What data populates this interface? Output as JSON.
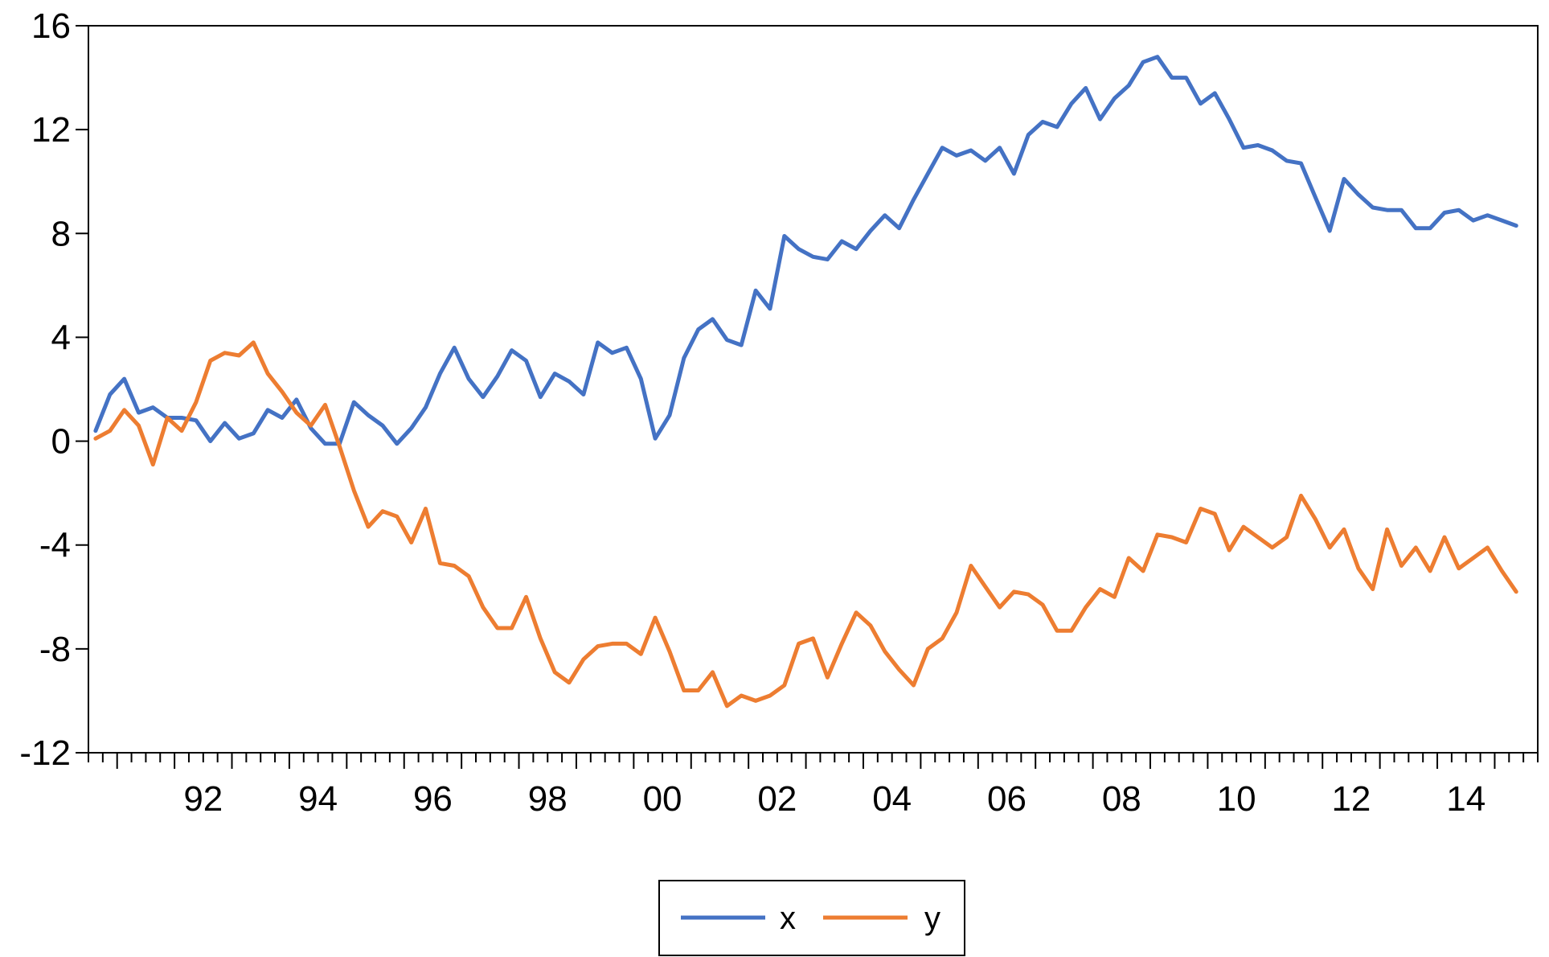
{
  "chart_data": {
    "type": "line",
    "title": "",
    "xlabel": "",
    "ylabel": "",
    "frequency": "quarterly",
    "x_start": "1990Q3",
    "x_end": "2015Q2",
    "x_tick_labels": [
      "92",
      "94",
      "96",
      "98",
      "00",
      "02",
      "04",
      "06",
      "08",
      "10",
      "12",
      "14"
    ],
    "y_ticks": [
      16,
      12,
      8,
      4,
      0,
      -4,
      -8,
      -12
    ],
    "y_tick_labels": [
      "16",
      "12",
      "8",
      "4",
      "0",
      "-4",
      "-8",
      "-12"
    ],
    "ylim": [
      -12,
      16
    ],
    "grid": false,
    "legend_position": "bottom-center",
    "series": [
      {
        "name": "x",
        "color": "#4472C4",
        "values": [
          0.4,
          1.8,
          2.4,
          1.1,
          1.3,
          0.9,
          0.9,
          0.8,
          0.0,
          0.7,
          0.1,
          0.3,
          1.2,
          0.9,
          1.6,
          0.5,
          -0.1,
          -0.1,
          1.5,
          1.0,
          0.6,
          -0.1,
          0.5,
          1.3,
          2.6,
          3.6,
          2.4,
          1.7,
          2.5,
          3.5,
          3.1,
          1.7,
          2.6,
          2.3,
          1.8,
          3.8,
          3.4,
          3.6,
          2.4,
          0.1,
          1.0,
          3.2,
          4.3,
          4.7,
          3.9,
          3.7,
          5.8,
          5.1,
          7.9,
          7.4,
          7.1,
          7.0,
          7.7,
          7.4,
          8.1,
          8.7,
          8.2,
          9.3,
          10.3,
          11.3,
          11.0,
          11.2,
          10.8,
          11.3,
          10.3,
          11.8,
          12.3,
          12.1,
          13.0,
          13.6,
          12.4,
          13.2,
          13.7,
          14.6,
          14.8,
          14.0,
          14.0,
          13.0,
          13.4,
          12.4,
          11.3,
          11.4,
          11.2,
          10.8,
          10.7,
          9.4,
          8.1,
          10.1,
          9.5,
          9.0,
          8.9,
          8.9,
          8.2,
          8.2,
          8.8,
          8.9,
          8.5,
          8.7,
          8.5,
          8.3
        ]
      },
      {
        "name": "y",
        "color": "#ED7D31",
        "values": [
          0.1,
          0.4,
          1.2,
          0.6,
          -0.9,
          0.9,
          0.4,
          1.5,
          3.1,
          3.4,
          3.3,
          3.8,
          2.6,
          1.9,
          1.1,
          0.6,
          1.4,
          -0.2,
          -1.9,
          -3.3,
          -2.7,
          -2.9,
          -3.9,
          -2.6,
          -4.7,
          -4.8,
          -5.2,
          -6.4,
          -7.2,
          -7.2,
          -6.0,
          -7.6,
          -8.9,
          -9.3,
          -8.4,
          -7.9,
          -7.8,
          -7.8,
          -8.2,
          -6.8,
          -8.1,
          -9.6,
          -9.6,
          -8.9,
          -10.2,
          -9.8,
          -10.0,
          -9.8,
          -9.4,
          -7.8,
          -7.6,
          -9.1,
          -7.8,
          -6.6,
          -7.1,
          -8.1,
          -8.8,
          -9.4,
          -8.0,
          -7.6,
          -6.6,
          -4.8,
          -5.6,
          -6.4,
          -5.8,
          -5.9,
          -6.3,
          -7.3,
          -7.3,
          -6.4,
          -5.7,
          -6.0,
          -4.5,
          -5.0,
          -3.6,
          -3.7,
          -3.9,
          -2.6,
          -2.8,
          -4.2,
          -3.3,
          -3.7,
          -4.1,
          -3.7,
          -2.1,
          -3.0,
          -4.1,
          -3.4,
          -4.9,
          -5.7,
          -3.4,
          -4.8,
          -4.1,
          -5.0,
          -3.7,
          -4.9,
          -4.5,
          -4.1,
          -5.0,
          -5.8
        ]
      }
    ]
  }
}
